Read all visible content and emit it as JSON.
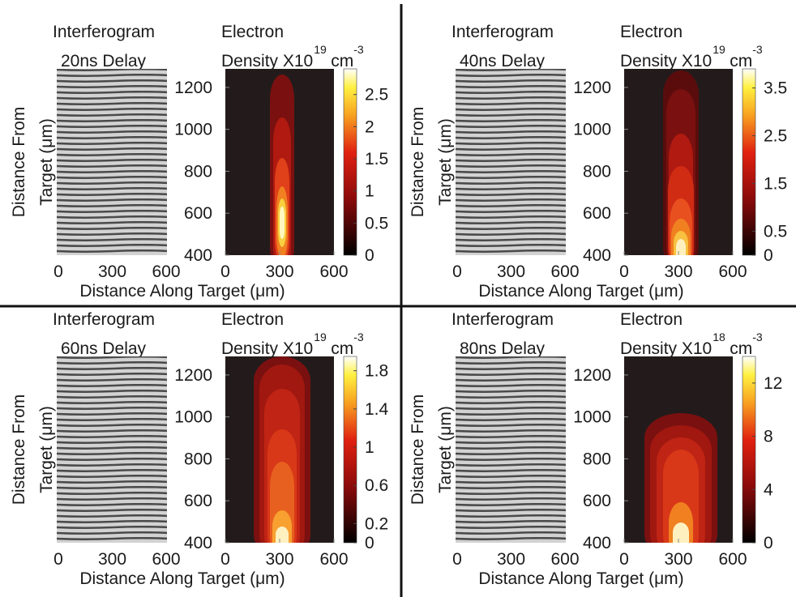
{
  "panels": [
    {
      "interferogram_title": "Interferogram",
      "delay": "20ns Delay",
      "density_title": "Electron",
      "density_label": "Density X10",
      "exponent": "19",
      "unit": "cm",
      "unit_exponent": "-3",
      "y_label_1": "Distance From",
      "y_label_2": "Target (μm)",
      "x_label": "Distance Along Target (μm)",
      "ylim": [
        400,
        1300
      ],
      "yticks": [
        400,
        600,
        800,
        1000,
        1200
      ],
      "xlim": [
        0,
        600
      ],
      "xticks": [
        0,
        300,
        600
      ],
      "cbar_lim": [
        0,
        2.9
      ],
      "cbar_ticks": [
        0,
        0.5,
        1,
        1.5,
        2,
        2.5
      ]
    },
    {
      "interferogram_title": "Interferogram",
      "delay": "40ns Delay",
      "density_title": "Electron",
      "density_label": "Density X10",
      "exponent": "19",
      "unit": "cm",
      "unit_exponent": "-3",
      "y_label_1": "Distance From",
      "y_label_2": "Target (μm)",
      "x_label": "Distance Along Target (μm)",
      "ylim": [
        400,
        1300
      ],
      "yticks": [
        400,
        600,
        800,
        1000,
        1200
      ],
      "xlim": [
        0,
        600
      ],
      "xticks": [
        0,
        300,
        600
      ],
      "cbar_lim": [
        0,
        3.9
      ],
      "cbar_ticks": [
        0,
        0.5,
        1.5,
        2.5,
        3.5
      ]
    },
    {
      "interferogram_title": "Interferogram",
      "delay": "60ns Delay",
      "density_title": "Electron",
      "density_label": "Density X10",
      "exponent": "19",
      "unit": "cm",
      "unit_exponent": "-3",
      "y_label_1": "Distance From",
      "y_label_2": "Target (μm)",
      "x_label": "Distance Along Target (μm)",
      "ylim": [
        400,
        1300
      ],
      "yticks": [
        400,
        600,
        800,
        1000,
        1200
      ],
      "xlim": [
        0,
        600
      ],
      "xticks": [
        0,
        300,
        600
      ],
      "cbar_lim": [
        0,
        1.95
      ],
      "cbar_ticks": [
        0,
        0.2,
        0.6,
        1,
        1.4,
        1.8
      ]
    },
    {
      "interferogram_title": "Interferogram",
      "delay": "80ns Delay",
      "density_title": "Electron",
      "density_label": "Density X10",
      "exponent": "18",
      "unit": "cm",
      "unit_exponent": "-3",
      "y_label_1": "Distance From",
      "y_label_2": "Target (μm)",
      "x_label": "Distance Along Target (μm)",
      "ylim": [
        400,
        1300
      ],
      "yticks": [
        400,
        600,
        800,
        1000,
        1200
      ],
      "xlim": [
        0,
        600
      ],
      "xticks": [
        0,
        300,
        600
      ],
      "cbar_lim": [
        0,
        14
      ],
      "cbar_ticks": [
        0,
        4,
        8,
        12
      ]
    }
  ]
}
